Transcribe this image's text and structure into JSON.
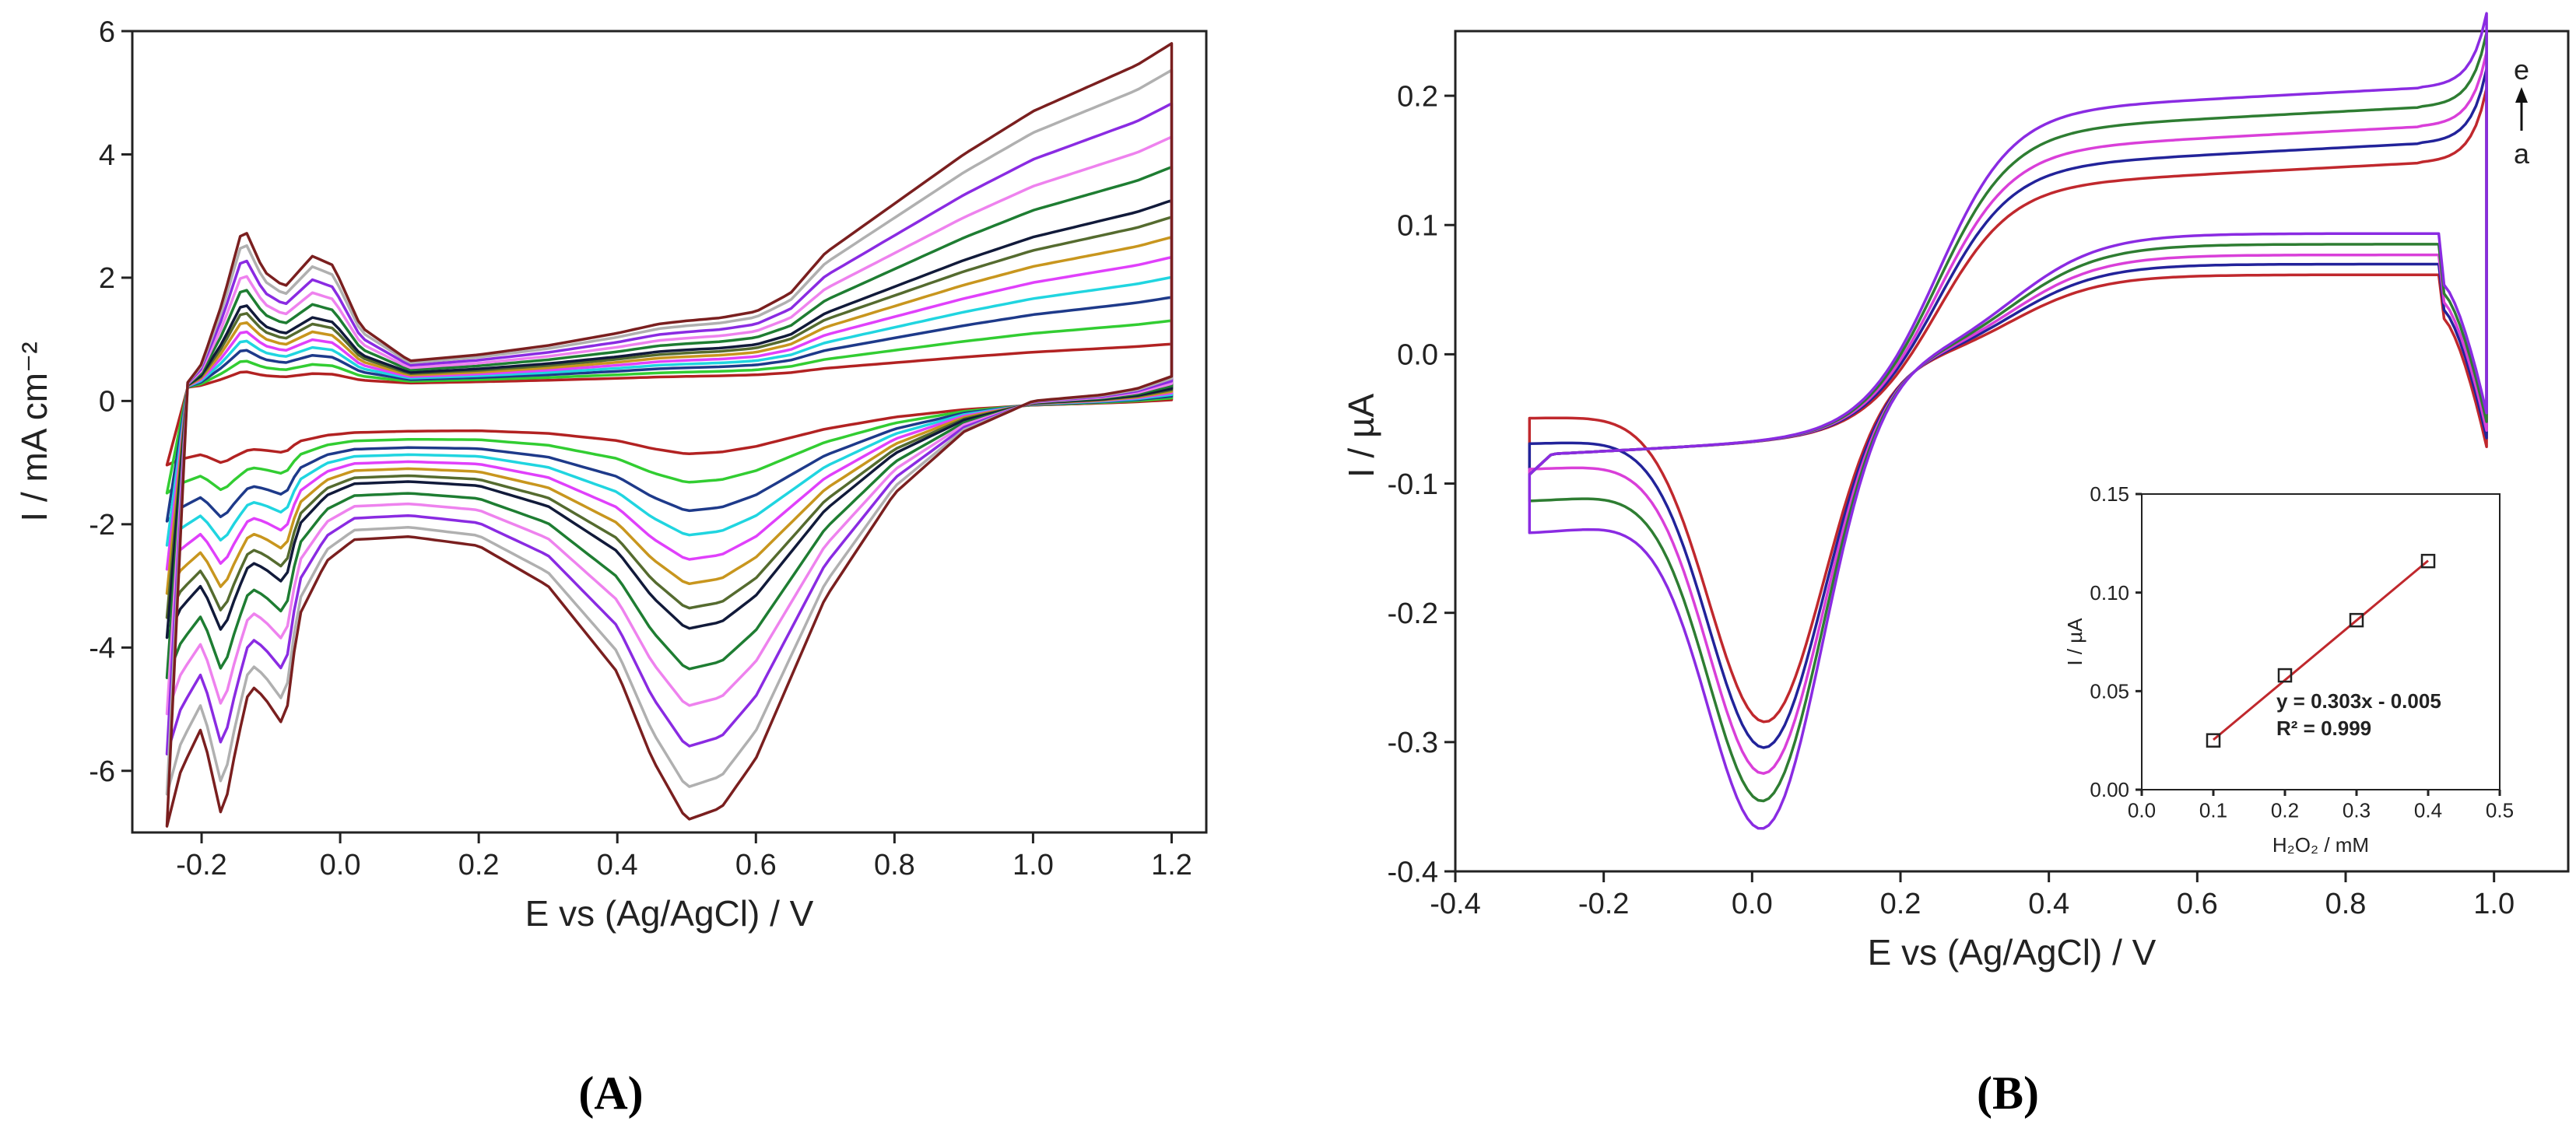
{
  "chart_data": [
    {
      "type": "line",
      "panel_label": "(A)",
      "xlabel": "E vs (Ag/AgCl) / V",
      "ylabel": "I / mA cm⁻²",
      "xlim": [
        -0.3,
        1.25
      ],
      "ylim": [
        -7,
        6
      ],
      "xticks": [
        -0.2,
        0.0,
        0.2,
        0.4,
        0.6,
        0.8,
        1.0,
        1.2
      ],
      "xtick_labels": [
        "-0.2",
        "0.0",
        "0.2",
        "0.4",
        "0.6",
        "0.8",
        "1.0",
        "1.2"
      ],
      "yticks": [
        -6,
        -4,
        -2,
        0,
        2,
        4,
        6
      ],
      "ytick_labels": [
        "-6",
        "-4",
        "-2",
        "0",
        "2",
        "4",
        "6"
      ],
      "legend": "none",
      "series": [
        {
          "name": "curve 1",
          "color": "#b22222",
          "scale": 0.1
        },
        {
          "name": "curve 2",
          "color": "#32cd32",
          "scale": 0.17
        },
        {
          "name": "curve 3",
          "color": "#1e3a8a",
          "scale": 0.24
        },
        {
          "name": "curve 4",
          "color": "#20d5e0",
          "scale": 0.3
        },
        {
          "name": "curve 5",
          "color": "#e040fb",
          "scale": 0.36
        },
        {
          "name": "curve 6",
          "color": "#c8961e",
          "scale": 0.42
        },
        {
          "name": "curve 7",
          "color": "#556b2f",
          "scale": 0.48
        },
        {
          "name": "curve 8",
          "color": "#111a3a",
          "scale": 0.53
        },
        {
          "name": "curve 9",
          "color": "#1e7d32",
          "scale": 0.63
        },
        {
          "name": "curve 10",
          "color": "#ee82ee",
          "scale": 0.72
        },
        {
          "name": "curve 11",
          "color": "#8a2be2",
          "scale": 0.82
        },
        {
          "name": "curve 12",
          "color": "#b0b0b0",
          "scale": 0.92
        },
        {
          "name": "curve 13",
          "color": "#7a1f1f",
          "scale": 1.0
        }
      ],
      "envelope": {
        "anodic": {
          "E": [
            -0.22,
            -0.2,
            -0.17,
            -0.14,
            -0.11,
            -0.08,
            -0.04,
            -0.01,
            0.03,
            0.1,
            0.2,
            0.3,
            0.4,
            0.46,
            0.5,
            0.55,
            0.6,
            0.65,
            0.7,
            0.8,
            0.9,
            1.0,
            1.1,
            1.15,
            1.2
          ],
          "I": [
            0.3,
            0.6,
            1.6,
            2.85,
            2.1,
            1.85,
            2.35,
            2.2,
            1.2,
            0.65,
            0.75,
            0.9,
            1.1,
            1.25,
            1.3,
            1.35,
            1.45,
            1.75,
            2.4,
            3.2,
            4.0,
            4.7,
            5.2,
            5.45,
            5.8
          ]
        },
        "cathodic": {
          "E": [
            1.2,
            1.15,
            1.1,
            1.0,
            0.9,
            0.8,
            0.7,
            0.6,
            0.55,
            0.5,
            0.45,
            0.4,
            0.3,
            0.2,
            0.1,
            0.02,
            -0.02,
            -0.06,
            -0.08,
            -0.11,
            -0.13,
            -0.15,
            -0.17,
            -0.2,
            -0.23,
            -0.25
          ],
          "I": [
            0.4,
            0.2,
            0.1,
            0.0,
            -0.5,
            -1.5,
            -3.2,
            -5.8,
            -6.6,
            -6.8,
            -5.8,
            -4.4,
            -3.0,
            -2.35,
            -2.2,
            -2.25,
            -2.6,
            -3.5,
            -5.3,
            -4.8,
            -4.6,
            -5.6,
            -6.8,
            -5.3,
            -6.0,
            -6.9
          ]
        }
      }
    },
    {
      "type": "line",
      "panel_label": "(B)",
      "xlabel": "E vs (Ag/AgCl) / V",
      "ylabel": "I / µA",
      "xlim": [
        -0.4,
        1.1
      ],
      "ylim": [
        -0.4,
        0.25
      ],
      "xticks": [
        -0.4,
        -0.2,
        0.0,
        0.2,
        0.4,
        0.6,
        0.8,
        1.0
      ],
      "xtick_labels": [
        "-0.4",
        "-0.2",
        "0.0",
        "0.2",
        "0.4",
        "0.6",
        "0.8",
        "1.0"
      ],
      "yticks": [
        -0.4,
        -0.3,
        -0.2,
        -0.1,
        0.0,
        0.1,
        0.2
      ],
      "ytick_labels": [
        "-0.4",
        "-0.3",
        "-0.2",
        "-0.1",
        "0.0",
        "0.1",
        "0.2"
      ],
      "legend": "none",
      "arrow_labels": {
        "top": "e",
        "bottom": "a"
      },
      "series": [
        {
          "name": "a",
          "color": "#c0282d",
          "anodic_plateau": 0.13,
          "cathodic_peak": -0.285,
          "reverse_end": -0.07
        },
        {
          "name": "b",
          "color": "#22239a",
          "anodic_plateau": 0.145,
          "cathodic_peak": -0.3,
          "reverse_end": -0.09
        },
        {
          "name": "c",
          "color": "#d93fd9",
          "anodic_plateau": 0.158,
          "cathodic_peak": -0.315,
          "reverse_end": -0.11
        },
        {
          "name": "d",
          "color": "#2e7d32",
          "anodic_plateau": 0.173,
          "cathodic_peak": -0.33,
          "reverse_end": -0.135
        },
        {
          "name": "e",
          "color": "#8a2be2",
          "anodic_plateau": 0.188,
          "cathodic_peak": -0.345,
          "reverse_end": -0.16
        }
      ],
      "inset": {
        "type": "scatter",
        "xlabel": "H₂O₂ / mM",
        "ylabel": "I / µA",
        "xlim": [
          0.0,
          0.5
        ],
        "ylim": [
          0.0,
          0.15
        ],
        "xticks": [
          0.0,
          0.1,
          0.2,
          0.3,
          0.4,
          0.5
        ],
        "xtick_labels": [
          "0.0",
          "0.1",
          "0.2",
          "0.3",
          "0.4",
          "0.5"
        ],
        "yticks": [
          0.0,
          0.05,
          0.1,
          0.15
        ],
        "ytick_labels": [
          "0.00",
          "0.05",
          "0.10",
          "0.15"
        ],
        "x": [
          0.1,
          0.2,
          0.3,
          0.4
        ],
        "y": [
          0.025,
          0.058,
          0.086,
          0.116
        ],
        "fit": {
          "slope": 0.303,
          "intercept": -0.005,
          "x_range": [
            0.1,
            0.4
          ]
        },
        "annotation_equation": "y = 0.303x - 0.005",
        "annotation_r2": "R² = 0.999",
        "marker_color": "#222222",
        "line_color": "#c0282d"
      }
    }
  ]
}
